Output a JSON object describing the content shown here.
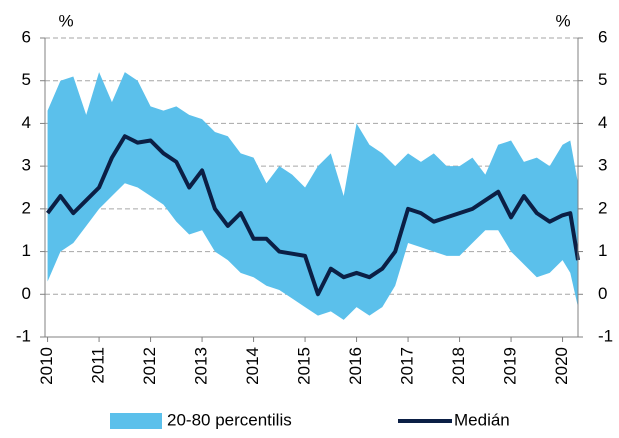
{
  "chart_data": {
    "type": "band-line",
    "ylabel": "%",
    "y2label": "%",
    "x": [
      2010,
      2010.25,
      2010.5,
      2010.75,
      2011,
      2011.25,
      2011.5,
      2011.75,
      2012,
      2012.25,
      2012.5,
      2012.75,
      2013,
      2013.25,
      2013.5,
      2013.75,
      2014,
      2014.25,
      2014.5,
      2014.75,
      2015,
      2015.25,
      2015.5,
      2015.75,
      2016,
      2016.25,
      2016.5,
      2016.75,
      2017,
      2017.25,
      2017.5,
      2017.75,
      2018,
      2018.25,
      2018.5,
      2018.75,
      2019,
      2019.25,
      2019.5,
      2019.75,
      2020,
      2020.15,
      2020.3
    ],
    "series": [
      {
        "name": "20-80 percentilis",
        "type": "band",
        "color": "#5bc0eb",
        "upper": [
          4.3,
          5.0,
          5.1,
          4.2,
          5.2,
          4.5,
          5.2,
          5.0,
          4.4,
          4.3,
          4.4,
          4.2,
          4.1,
          3.8,
          3.7,
          3.3,
          3.2,
          2.6,
          3.0,
          2.8,
          2.5,
          3.0,
          3.3,
          2.3,
          4.0,
          3.5,
          3.3,
          3.0,
          3.3,
          3.1,
          3.3,
          3.0,
          3.0,
          3.2,
          2.8,
          3.5,
          3.6,
          3.1,
          3.2,
          3.0,
          3.5,
          3.6,
          2.6
        ],
        "lower": [
          0.3,
          1.0,
          1.2,
          1.6,
          2.0,
          2.3,
          2.6,
          2.5,
          2.3,
          2.1,
          1.7,
          1.4,
          1.5,
          1.0,
          0.8,
          0.5,
          0.4,
          0.2,
          0.1,
          -0.1,
          -0.3,
          -0.5,
          -0.4,
          -0.6,
          -0.3,
          -0.5,
          -0.3,
          0.2,
          1.2,
          1.1,
          1.0,
          0.9,
          0.9,
          1.2,
          1.5,
          1.5,
          1.0,
          0.7,
          0.4,
          0.5,
          0.8,
          0.5,
          -0.3
        ]
      },
      {
        "name": "Medián",
        "type": "line",
        "color": "#0b1f45",
        "values": [
          1.9,
          2.3,
          1.9,
          2.2,
          2.5,
          3.2,
          3.7,
          3.55,
          3.6,
          3.3,
          3.1,
          2.5,
          2.9,
          2.0,
          1.6,
          1.9,
          1.3,
          1.3,
          1.0,
          0.95,
          0.9,
          0.0,
          0.6,
          0.4,
          0.5,
          0.4,
          0.6,
          1.0,
          2.0,
          1.9,
          1.7,
          1.8,
          1.9,
          2.0,
          2.2,
          2.4,
          1.8,
          2.3,
          1.9,
          1.7,
          1.85,
          1.9,
          0.8
        ]
      }
    ],
    "xlim": [
      2009.95,
      2020.3
    ],
    "xticks": [
      2010,
      2011,
      2012,
      2013,
      2014,
      2015,
      2016,
      2017,
      2018,
      2019,
      2020
    ],
    "ylim": [
      -1,
      6
    ],
    "yticks": [
      -1,
      0,
      1,
      2,
      3,
      4,
      5,
      6
    ],
    "y2lim": [
      -1,
      6
    ],
    "y2ticks": [
      -1,
      0,
      1,
      2,
      3,
      4,
      5,
      6
    ],
    "grid": true
  }
}
